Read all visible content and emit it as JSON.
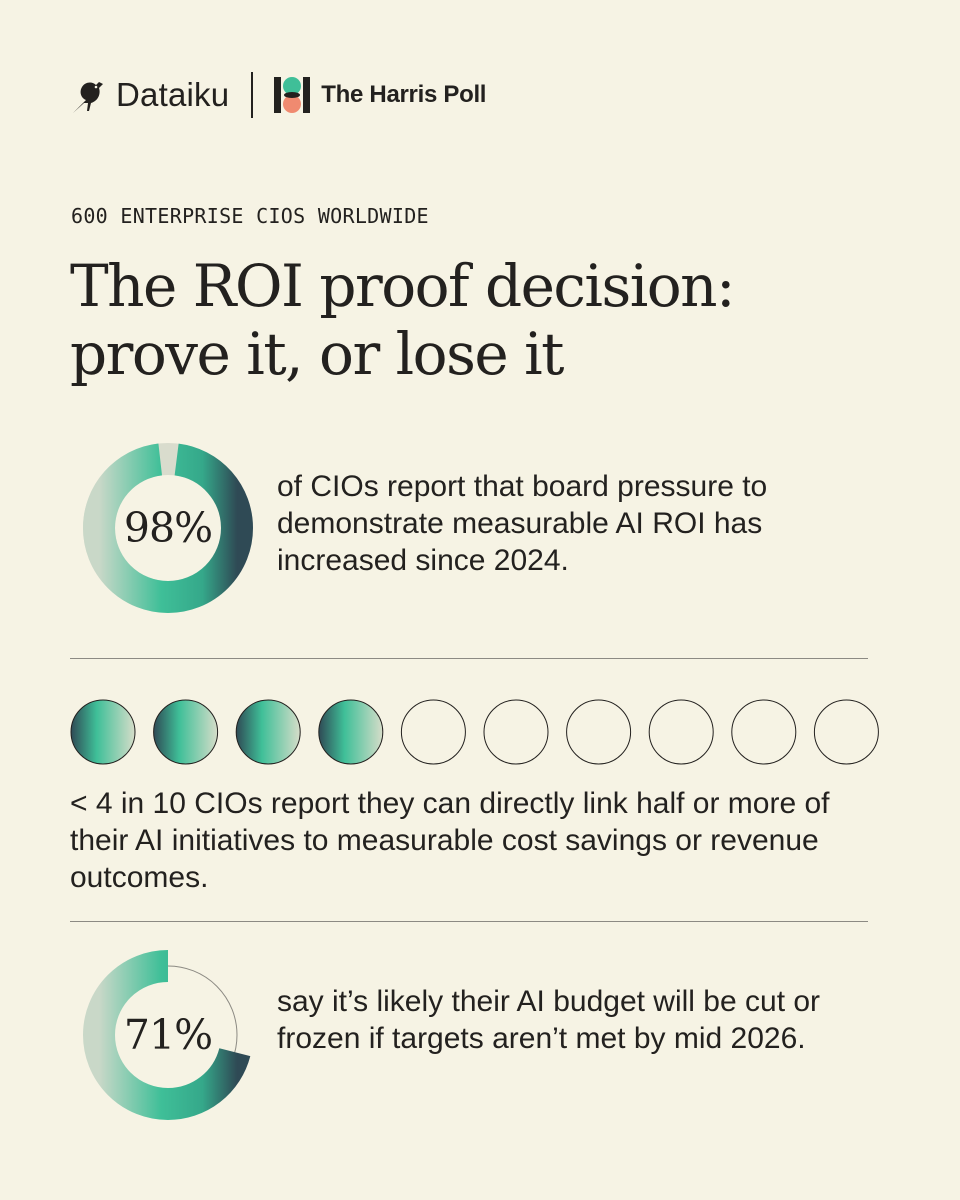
{
  "header": {
    "dataiku_name": "Dataiku",
    "harris_name": "The Harris Poll"
  },
  "eyebrow": "600 ENTERPRISE CIOS WORLDWIDE",
  "title": {
    "line1": "The ROI proof decision:",
    "line2": "prove it, or lose it"
  },
  "stats": [
    {
      "value_label": "98%",
      "percent": 98,
      "text": "of CIOs report that board pressure to demonstrate measurable AI ROI has increased since 2024."
    },
    {
      "filled_circles": 4,
      "total_circles": 10,
      "text": "< 4 in 10 CIOs report they can directly link half or more of their AI initiatives to measurable cost savings or revenue outcomes."
    },
    {
      "value_label": "71%",
      "percent": 71,
      "text": "say it’s likely their AI budget will be cut or frozen if targets aren’t met by mid 2026."
    }
  ],
  "colors": {
    "background": "#f6f3e4",
    "text": "#23211f",
    "accent_green": "#3fbf98",
    "accent_dark": "#2c3e50",
    "accent_light": "#c9d8c8",
    "harris_coral": "#f08a70",
    "rule": "#8c8a83"
  },
  "icons": {
    "dataiku": "bird-icon",
    "harris": "harris-poll-logo-icon"
  }
}
